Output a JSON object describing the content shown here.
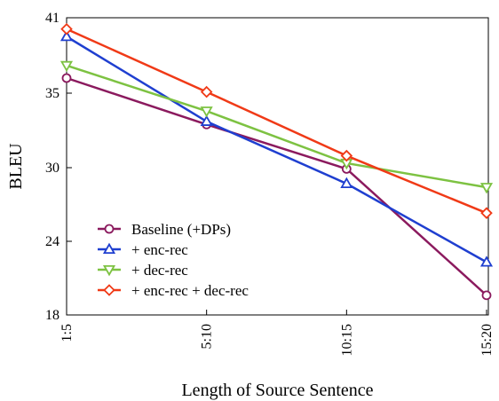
{
  "chart_data": {
    "type": "line",
    "xlabel": "Length of Source Sentence",
    "ylabel": "BLEU",
    "categories": [
      "1:5",
      "5:10",
      "10:15",
      "15:20"
    ],
    "ylim": [
      18,
      41
    ],
    "yticks": [
      18,
      24,
      30,
      35,
      41
    ],
    "grid": false,
    "legend_position": "bottom-left",
    "series": [
      {
        "name": "Baseline (+DPs)",
        "color": "#8B1A5E",
        "marker": "circle",
        "values": [
          36.2,
          32.9,
          29.9,
          19.6
        ]
      },
      {
        "name": "+ enc-rec",
        "color": "#1F3FD0",
        "marker": "triangle-up",
        "values": [
          39.5,
          33.1,
          28.7,
          22.3
        ]
      },
      {
        "name": "+ dec-rec",
        "color": "#7DC242",
        "marker": "triangle-down",
        "values": [
          37.2,
          33.8,
          30.3,
          28.4
        ]
      },
      {
        "name": "+ enc-rec + dec-rec",
        "color": "#F03A17",
        "marker": "diamond",
        "values": [
          40.1,
          35.1,
          30.8,
          26.3
        ]
      }
    ]
  }
}
